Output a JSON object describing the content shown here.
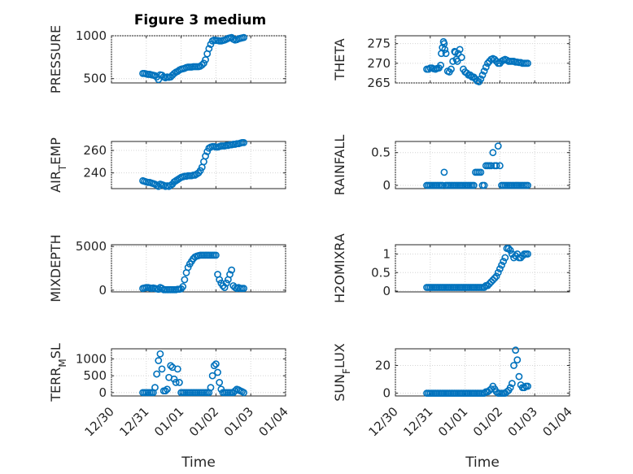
{
  "figure_title": "Figure 3 medium",
  "colors": {
    "marker": "#0072BD",
    "axis": "#262626",
    "grid": "#d4d4d4"
  },
  "chart_data": [
    {
      "type": "scatter",
      "ylabel": "PRESSURE",
      "ylabel_sub": "",
      "ylabel_tail": "",
      "xlim": [
        0,
        5
      ],
      "ylim": [
        450,
        1000
      ],
      "yticks": [
        500,
        1000
      ],
      "x": [
        0.9,
        0.95,
        1.0,
        1.05,
        1.1,
        1.15,
        1.2,
        1.25,
        1.3,
        1.35,
        1.4,
        1.45,
        1.5,
        1.55,
        1.6,
        1.65,
        1.7,
        1.75,
        1.8,
        1.85,
        1.9,
        1.95,
        2.0,
        2.05,
        2.1,
        2.15,
        2.2,
        2.25,
        2.3,
        2.35,
        2.4,
        2.45,
        2.5,
        2.55,
        2.6,
        2.65,
        2.7,
        2.75,
        2.8,
        2.85,
        2.9,
        2.95,
        3.0,
        3.05,
        3.1,
        3.15,
        3.2,
        3.25,
        3.3,
        3.35,
        3.4,
        3.45,
        3.5,
        3.55,
        3.6,
        3.65,
        3.7,
        3.75,
        3.8
      ],
      "y": [
        560,
        560,
        555,
        550,
        550,
        545,
        540,
        535,
        520,
        490,
        545,
        540,
        520,
        510,
        520,
        515,
        520,
        540,
        560,
        575,
        585,
        600,
        610,
        615,
        620,
        630,
        635,
        635,
        635,
        640,
        640,
        640,
        640,
        645,
        660,
        680,
        720,
        790,
        850,
        900,
        940,
        950,
        945,
        945,
        940,
        940,
        945,
        950,
        960,
        970,
        975,
        980,
        960,
        950,
        955,
        965,
        970,
        975,
        980
      ]
    },
    {
      "type": "scatter",
      "ylabel": "THETA",
      "ylabel_sub": "",
      "ylabel_tail": "",
      "xlim": [
        0,
        5
      ],
      "ylim": [
        265,
        277
      ],
      "yticks": [
        265,
        270,
        275
      ],
      "x": [
        0.9,
        0.95,
        1.0,
        1.05,
        1.1,
        1.15,
        1.2,
        1.25,
        1.3,
        1.32,
        1.35,
        1.38,
        1.4,
        1.42,
        1.45,
        1.5,
        1.55,
        1.6,
        1.65,
        1.7,
        1.72,
        1.75,
        1.78,
        1.8,
        1.85,
        1.9,
        1.95,
        2.0,
        2.05,
        2.1,
        2.15,
        2.2,
        2.25,
        2.3,
        2.35,
        2.4,
        2.45,
        2.5,
        2.55,
        2.6,
        2.65,
        2.7,
        2.75,
        2.8,
        2.85,
        2.9,
        2.95,
        3.0,
        3.05,
        3.1,
        3.15,
        3.2,
        3.25,
        3.3,
        3.35,
        3.4,
        3.45,
        3.5,
        3.55,
        3.6,
        3.65,
        3.7,
        3.75,
        3.8
      ],
      "y": [
        268.5,
        268.5,
        268.8,
        268.8,
        268.6,
        268.5,
        268.7,
        268.8,
        269.5,
        272.5,
        274.0,
        275.5,
        275.0,
        273.5,
        272.5,
        268.0,
        267.8,
        268.5,
        270.5,
        273.0,
        272.8,
        271.0,
        270.5,
        272.5,
        273.5,
        271.5,
        268.5,
        267.8,
        267.5,
        267.0,
        267.0,
        266.5,
        266.5,
        266.0,
        265.5,
        265.3,
        266.0,
        267.0,
        268.0,
        269.0,
        270.0,
        270.5,
        271.0,
        271.2,
        271.0,
        270.5,
        270.0,
        270.0,
        270.5,
        270.8,
        271.0,
        270.8,
        270.5,
        270.5,
        270.5,
        270.5,
        270.3,
        270.3,
        270.2,
        270.2,
        270.0,
        270.0,
        270.0,
        270.0
      ]
    },
    {
      "type": "scatter",
      "ylabel": "AIR",
      "ylabel_sub": "T",
      "ylabel_tail": "EMP",
      "xlim": [
        0,
        5
      ],
      "ylim": [
        226,
        268
      ],
      "yticks": [
        240,
        260
      ],
      "x": [
        0.9,
        0.95,
        1.0,
        1.05,
        1.1,
        1.15,
        1.2,
        1.25,
        1.3,
        1.35,
        1.4,
        1.45,
        1.5,
        1.55,
        1.6,
        1.65,
        1.7,
        1.75,
        1.8,
        1.85,
        1.9,
        1.95,
        2.0,
        2.05,
        2.1,
        2.15,
        2.2,
        2.25,
        2.3,
        2.35,
        2.4,
        2.45,
        2.5,
        2.55,
        2.6,
        2.65,
        2.7,
        2.75,
        2.8,
        2.85,
        2.9,
        2.95,
        3.0,
        3.05,
        3.1,
        3.15,
        3.2,
        3.25,
        3.3,
        3.35,
        3.4,
        3.45,
        3.5,
        3.55,
        3.6,
        3.65,
        3.7,
        3.75,
        3.8
      ],
      "y": [
        233,
        232.5,
        232,
        231.5,
        231.5,
        231,
        230.5,
        230,
        229,
        228,
        230,
        229.5,
        229,
        228,
        228.5,
        228,
        229,
        230,
        232,
        233,
        234,
        235,
        236,
        236.5,
        237,
        237,
        237.5,
        237.5,
        237.5,
        238,
        238,
        239,
        240,
        242,
        245,
        250,
        255,
        259,
        262,
        263,
        263.5,
        263.5,
        263,
        263,
        263.5,
        264,
        264,
        264,
        264.5,
        264.5,
        265,
        265,
        265.5,
        265.5,
        266,
        266,
        266.5,
        267,
        267
      ]
    },
    {
      "type": "scatter",
      "ylabel": "RAINFALL",
      "ylabel_sub": "",
      "ylabel_tail": "",
      "xlim": [
        0,
        5
      ],
      "ylim": [
        -0.05,
        0.67
      ],
      "yticks": [
        0,
        0.5
      ],
      "x": [
        0.9,
        0.95,
        1.0,
        1.05,
        1.1,
        1.15,
        1.2,
        1.25,
        1.3,
        1.35,
        1.4,
        1.45,
        1.5,
        1.55,
        1.6,
        1.65,
        1.7,
        1.75,
        1.8,
        1.85,
        1.9,
        1.95,
        2.0,
        2.05,
        2.1,
        2.15,
        2.2,
        2.25,
        2.3,
        2.35,
        2.4,
        2.45,
        2.5,
        2.55,
        2.6,
        2.65,
        2.7,
        2.75,
        2.8,
        2.85,
        2.9,
        2.95,
        3.0,
        3.05,
        3.1,
        3.15,
        3.2,
        3.25,
        3.3,
        3.35,
        3.4,
        3.45,
        3.5,
        3.55,
        3.6,
        3.65,
        3.7,
        3.75,
        3.8
      ],
      "y": [
        0,
        0,
        0,
        0,
        0,
        0,
        0,
        0,
        0,
        0,
        0.2,
        0,
        0,
        0,
        0,
        0,
        0,
        0,
        0,
        0,
        0,
        0,
        0,
        0,
        0,
        0,
        0,
        0,
        0.2,
        0.2,
        0.2,
        0.2,
        0,
        0,
        0.3,
        0.3,
        0.3,
        0.3,
        0.5,
        0.3,
        0.3,
        0.6,
        0.3,
        0,
        0,
        0,
        0,
        0,
        0,
        0,
        0,
        0,
        0,
        0,
        0,
        0,
        0,
        0,
        0
      ]
    },
    {
      "type": "scatter",
      "ylabel": "MIXDEPTH",
      "ylabel_sub": "",
      "ylabel_tail": "",
      "xlim": [
        0,
        5
      ],
      "ylim": [
        -200,
        5200
      ],
      "yticks": [
        0,
        5000
      ],
      "x": [
        0.9,
        0.95,
        1.0,
        1.05,
        1.1,
        1.15,
        1.2,
        1.25,
        1.3,
        1.35,
        1.4,
        1.45,
        1.5,
        1.55,
        1.6,
        1.65,
        1.7,
        1.75,
        1.8,
        1.85,
        1.9,
        1.95,
        2.0,
        2.05,
        2.1,
        2.15,
        2.2,
        2.25,
        2.3,
        2.35,
        2.4,
        2.45,
        2.5,
        2.55,
        2.6,
        2.65,
        2.7,
        2.75,
        2.8,
        2.85,
        2.9,
        2.95,
        3.0,
        3.05,
        3.1,
        3.15,
        3.2,
        3.25,
        3.3,
        3.35,
        3.4,
        3.45,
        3.5,
        3.55,
        3.6,
        3.65,
        3.7,
        3.75,
        3.8
      ],
      "y": [
        200,
        250,
        300,
        300,
        250,
        200,
        250,
        200,
        150,
        100,
        300,
        200,
        50,
        50,
        50,
        50,
        50,
        50,
        50,
        50,
        100,
        100,
        150,
        400,
        1200,
        2000,
        2600,
        3000,
        3300,
        3600,
        3800,
        3900,
        3950,
        4000,
        4000,
        4000,
        4000,
        4000,
        4000,
        4000,
        4000,
        4000,
        4000,
        1800,
        1200,
        800,
        500,
        300,
        800,
        1200,
        1800,
        2300,
        500,
        300,
        200,
        300,
        200,
        200,
        200
      ]
    },
    {
      "type": "scatter",
      "ylabel": "H2OMIXRA",
      "ylabel_sub": "",
      "ylabel_tail": "",
      "xlim": [
        0,
        5
      ],
      "ylim": [
        -0.02,
        1.25
      ],
      "yticks": [
        0,
        0.5,
        1
      ],
      "x": [
        0.9,
        0.95,
        1.0,
        1.05,
        1.1,
        1.15,
        1.2,
        1.25,
        1.3,
        1.35,
        1.4,
        1.45,
        1.5,
        1.55,
        1.6,
        1.65,
        1.7,
        1.75,
        1.8,
        1.85,
        1.9,
        1.95,
        2.0,
        2.05,
        2.1,
        2.15,
        2.2,
        2.25,
        2.3,
        2.35,
        2.4,
        2.45,
        2.5,
        2.55,
        2.6,
        2.65,
        2.7,
        2.75,
        2.8,
        2.85,
        2.9,
        2.95,
        3.0,
        3.05,
        3.1,
        3.15,
        3.2,
        3.25,
        3.3,
        3.35,
        3.4,
        3.45,
        3.5,
        3.55,
        3.6,
        3.65,
        3.7,
        3.75,
        3.8
      ],
      "y": [
        0.1,
        0.1,
        0.1,
        0.1,
        0.1,
        0.1,
        0.1,
        0.1,
        0.1,
        0.1,
        0.1,
        0.1,
        0.1,
        0.1,
        0.1,
        0.1,
        0.1,
        0.1,
        0.1,
        0.1,
        0.1,
        0.1,
        0.1,
        0.1,
        0.1,
        0.1,
        0.1,
        0.1,
        0.1,
        0.1,
        0.1,
        0.1,
        0.1,
        0.1,
        0.15,
        0.15,
        0.2,
        0.25,
        0.3,
        0.35,
        0.4,
        0.5,
        0.6,
        0.7,
        0.8,
        0.9,
        1.15,
        1.15,
        1.1,
        1.0,
        0.9,
        0.95,
        1.0,
        0.9,
        0.9,
        0.95,
        1.0,
        1.0,
        1.0
      ]
    },
    {
      "type": "scatter",
      "ylabel": "TERR",
      "ylabel_sub": "M",
      "ylabel_tail": "SL",
      "xlim": [
        0,
        5
      ],
      "ylim": [
        -100,
        1300
      ],
      "yticks": [
        0,
        500,
        1000
      ],
      "x": [
        0.9,
        0.95,
        1.0,
        1.05,
        1.1,
        1.15,
        1.2,
        1.25,
        1.3,
        1.35,
        1.4,
        1.45,
        1.5,
        1.55,
        1.6,
        1.65,
        1.7,
        1.75,
        1.8,
        1.85,
        1.9,
        1.95,
        2.0,
        2.05,
        2.1,
        2.15,
        2.2,
        2.25,
        2.3,
        2.35,
        2.4,
        2.45,
        2.5,
        2.55,
        2.6,
        2.65,
        2.7,
        2.75,
        2.8,
        2.85,
        2.9,
        2.95,
        3.0,
        3.05,
        3.1,
        3.15,
        3.2,
        3.25,
        3.3,
        3.35,
        3.4,
        3.45,
        3.5,
        3.55,
        3.6,
        3.65,
        3.7,
        3.75,
        3.8
      ],
      "y": [
        0,
        0,
        0,
        0,
        0,
        0,
        0,
        150,
        550,
        950,
        1150,
        700,
        50,
        50,
        100,
        450,
        800,
        750,
        400,
        300,
        700,
        300,
        0,
        0,
        0,
        0,
        0,
        0,
        0,
        0,
        0,
        0,
        0,
        0,
        0,
        0,
        0,
        0,
        0,
        150,
        500,
        800,
        850,
        600,
        300,
        100,
        0,
        0,
        0,
        0,
        0,
        0,
        0,
        50,
        100,
        80,
        50,
        30,
        0
      ]
    },
    {
      "type": "scatter",
      "ylabel": "SUN",
      "ylabel_sub": "F",
      "ylabel_tail": "LUX",
      "xlim": [
        0,
        5
      ],
      "ylim": [
        -2,
        32
      ],
      "yticks": [
        0,
        20
      ],
      "x": [
        0.9,
        0.95,
        1.0,
        1.05,
        1.1,
        1.15,
        1.2,
        1.25,
        1.3,
        1.35,
        1.4,
        1.45,
        1.5,
        1.55,
        1.6,
        1.65,
        1.7,
        1.75,
        1.8,
        1.85,
        1.9,
        1.95,
        2.0,
        2.05,
        2.1,
        2.15,
        2.2,
        2.25,
        2.3,
        2.35,
        2.4,
        2.45,
        2.5,
        2.55,
        2.6,
        2.65,
        2.7,
        2.75,
        2.8,
        2.85,
        2.9,
        2.95,
        3.0,
        3.05,
        3.1,
        3.15,
        3.2,
        3.25,
        3.3,
        3.35,
        3.4,
        3.45,
        3.5,
        3.55,
        3.6,
        3.65,
        3.7,
        3.75,
        3.8
      ],
      "y": [
        0,
        0,
        0,
        0,
        0,
        0,
        0,
        0,
        0,
        0,
        0,
        0,
        0,
        0,
        0,
        0,
        0,
        0,
        0,
        0,
        0,
        0,
        0,
        0,
        0,
        0,
        0,
        0,
        0,
        0,
        0,
        0,
        0,
        0,
        1,
        1,
        2,
        3,
        5,
        3,
        1,
        0,
        0,
        0,
        0,
        0,
        1,
        2,
        4,
        7,
        20,
        31,
        24,
        12,
        6,
        4,
        4,
        5,
        5
      ]
    }
  ],
  "x_axis": {
    "label": "Time",
    "ticks": [
      0,
      1,
      2,
      3,
      4,
      5
    ],
    "tick_labels": [
      "12/30",
      "12/31",
      "01/01",
      "01/02",
      "01/03",
      "01/04"
    ]
  }
}
